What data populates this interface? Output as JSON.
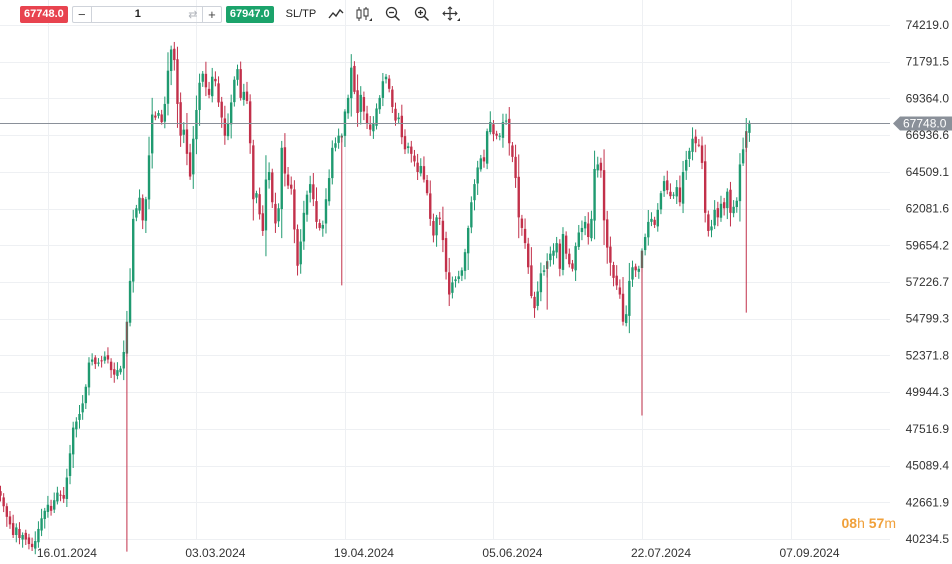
{
  "toolbar": {
    "sell_price": "67748.0",
    "quantity": "1",
    "buy_price": "67947.0",
    "sltp_label": "SL/TP",
    "minus_label": "−",
    "plus_label": "+"
  },
  "timer": {
    "hours": "08",
    "h_unit": "h",
    "minutes": "57",
    "m_unit": "m"
  },
  "colors": {
    "up": "#1f9a70",
    "down": "#c2304a",
    "current_price_tag": "#8a9099",
    "grid": "#eef0f3",
    "axis_text": "#333333"
  },
  "chart_data": {
    "type": "candlestick",
    "title": "",
    "xlabel": "",
    "ylabel": "",
    "current_price": 67748.0,
    "ylim": [
      39400,
      74900
    ],
    "y_ticks": [
      74219.0,
      71791.5,
      69364.0,
      66936.6,
      64509.1,
      62081.6,
      59654.2,
      57226.7,
      54799.3,
      52371.8,
      49944.3,
      47516.9,
      45089.4,
      42661.9,
      40234.5
    ],
    "y_tick_labels": [
      "74219.0",
      "71791.5",
      "69364.0",
      "66936.6",
      "64509.1",
      "62081.6",
      "59654.2",
      "57226.7",
      "54799.3",
      "52371.8",
      "49944.3",
      "47516.9",
      "45089.4",
      "42661.9",
      "40234.5"
    ],
    "x_tick_labels": [
      "16.01.2024",
      "03.03.2024",
      "19.04.2024",
      "05.06.2024",
      "22.07.2024",
      "07.09.2024"
    ],
    "x_tick_days": [
      15,
      62,
      109,
      156,
      203,
      250
    ],
    "start_date": "2024-01-01",
    "closes": [
      43100,
      42400,
      41700,
      41200,
      40500,
      41000,
      40300,
      40500,
      40200,
      39900,
      39700,
      40100,
      40900,
      41600,
      42100,
      42500,
      42100,
      42800,
      43300,
      43100,
      42900,
      44300,
      45900,
      47600,
      48000,
      48500,
      49200,
      50300,
      51900,
      52100,
      51800,
      51900,
      52000,
      52300,
      52100,
      51400,
      51100,
      51400,
      51500,
      52600,
      54600,
      57300,
      61400,
      62100,
      62800,
      61300,
      62700,
      65600,
      68300,
      68100,
      68400,
      67800,
      69000,
      71200,
      72600,
      71900,
      69000,
      66900,
      67300,
      65700,
      64200,
      66700,
      68600,
      70400,
      71000,
      70100,
      69600,
      70800,
      70500,
      69100,
      68100,
      66900,
      67700,
      69100,
      70600,
      71300,
      69400,
      69800,
      69200,
      66400,
      62700,
      63100,
      61700,
      60600,
      64000,
      64500,
      62500,
      61100,
      62100,
      66100,
      64400,
      63600,
      63400,
      60700,
      58300,
      59900,
      61800,
      63000,
      63700,
      62700,
      61200,
      60800,
      61000,
      62700,
      64100,
      66100,
      66400,
      66900,
      66900,
      68500,
      69400,
      71400,
      69800,
      68400,
      69600,
      68500,
      67700,
      67300,
      67700,
      68700,
      69400,
      70500,
      70800,
      70000,
      68800,
      67900,
      68100,
      66800,
      66000,
      66200,
      65700,
      65200,
      64500,
      64900,
      64000,
      63100,
      61400,
      60300,
      61500,
      61400,
      60000,
      57900,
      56400,
      57200,
      57400,
      57600,
      58000,
      59200,
      60800,
      62500,
      63700,
      64800,
      65400,
      65200,
      67200,
      67800,
      67000,
      66900,
      66900,
      67800,
      67900,
      66400,
      65500,
      64100,
      61500,
      60800,
      59800,
      58200,
      56300,
      55500,
      56600,
      57800,
      58000,
      58600,
      59100,
      59300,
      59800,
      58100,
      60400,
      59100,
      58400,
      58100,
      59600,
      60500,
      60800,
      61200,
      60200,
      61400,
      64700,
      65000,
      64600,
      61300,
      59500,
      58500,
      57500,
      57000,
      56400,
      54600,
      55100,
      57300,
      58200,
      58000,
      58100,
      59300,
      60200,
      61200,
      61400,
      61000,
      62000,
      63100,
      63900,
      63300,
      62900,
      63000,
      63500,
      62500,
      64500,
      65300,
      65900,
      66700,
      66400,
      66300,
      65100,
      61800,
      60600,
      60900,
      62000,
      61500,
      62400,
      62100,
      63200,
      61800,
      62200,
      62600,
      65000,
      66000,
      67200,
      67748
    ],
    "note": "daily candlesticks; values in USD price units"
  }
}
